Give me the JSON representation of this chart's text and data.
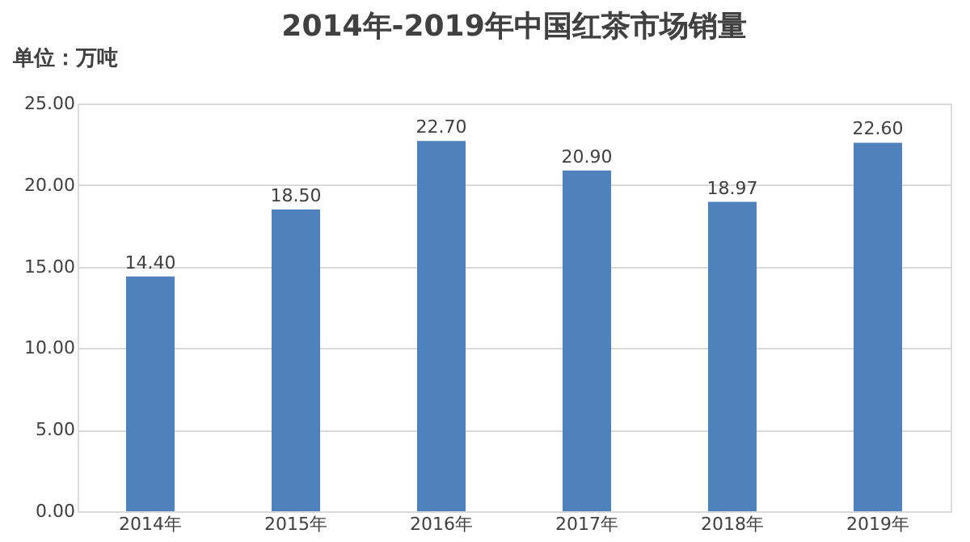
{
  "chart_data": {
    "type": "bar",
    "title": "2014年-2019年中国红茶市场销量",
    "annotations": [
      "单位：万吨"
    ],
    "categories": [
      "2014年",
      "2015年",
      "2016年",
      "2017年",
      "2018年",
      "2019年"
    ],
    "values": [
      14.4,
      18.5,
      22.7,
      20.9,
      18.97,
      22.6
    ],
    "value_labels": [
      "14.40",
      "18.50",
      "22.70",
      "20.90",
      "18.97",
      "22.60"
    ],
    "color": "#4f81bd",
    "ylim": [
      0,
      25
    ],
    "yticks": [
      {
        "value": 0,
        "label": "0.00"
      },
      {
        "value": 5,
        "label": "5.00"
      },
      {
        "value": 10,
        "label": "10.00"
      },
      {
        "value": 15,
        "label": "15.00"
      },
      {
        "value": 20,
        "label": "20.00"
      },
      {
        "value": 25,
        "label": "25.00"
      }
    ],
    "grid": "y"
  }
}
